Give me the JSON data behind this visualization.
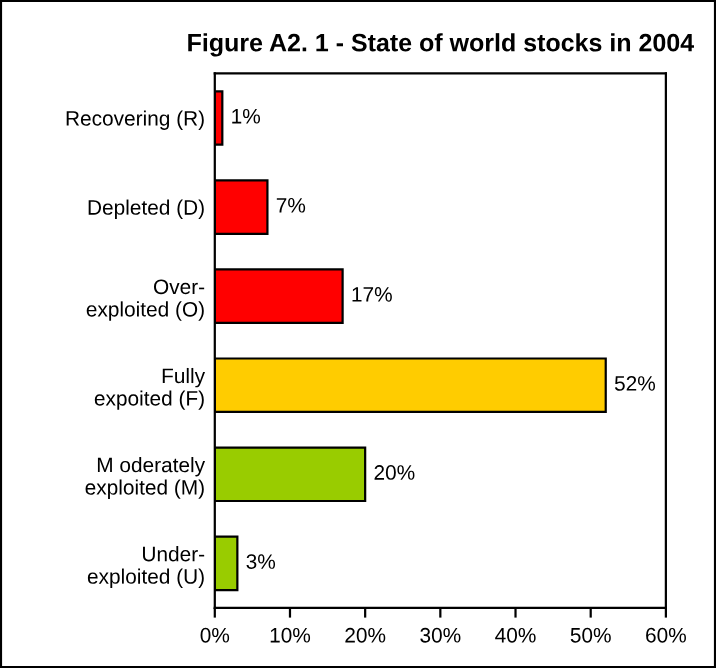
{
  "chart_data": {
    "type": "bar",
    "orientation": "horizontal",
    "title": "Figure A2. 1 - State of world stocks in 2004",
    "categories": [
      "Recovering (R)",
      "Depleted (D)",
      "Over-\nexploited (O)",
      "Fully\nexpoited (F)",
      "M oderately\nexploited (M)",
      "Under-\nexploited (U)"
    ],
    "values": [
      1,
      7,
      17,
      52,
      20,
      3
    ],
    "colors": [
      "#ff0000",
      "#ff0000",
      "#ff0000",
      "#ffcc00",
      "#99cc00",
      "#99cc00"
    ],
    "value_labels": [
      "1%",
      "7%",
      "17%",
      "52%",
      "20%",
      "3%"
    ],
    "xlim": [
      0,
      60
    ],
    "xticks": [
      {
        "value": 0,
        "label": "0%"
      },
      {
        "value": 10,
        "label": "10%"
      },
      {
        "value": 20,
        "label": "20%"
      },
      {
        "value": 30,
        "label": "30%"
      },
      {
        "value": 40,
        "label": "40%"
      },
      {
        "value": 50,
        "label": "50%"
      },
      {
        "value": 60,
        "label": "60%"
      }
    ],
    "grid": false,
    "legend": false
  }
}
